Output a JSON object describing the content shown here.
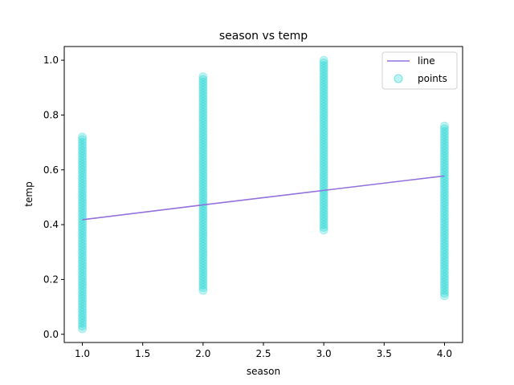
{
  "chart_data": {
    "type": "scatter",
    "title": "season vs temp",
    "xlabel": "season",
    "ylabel": "temp",
    "xlim": [
      0.85,
      4.15
    ],
    "ylim": [
      -0.03,
      1.05
    ],
    "xticks": [
      1.0,
      1.5,
      2.0,
      2.5,
      3.0,
      3.5,
      4.0
    ],
    "xtick_labels": [
      "1.0",
      "1.5",
      "2.0",
      "2.5",
      "3.0",
      "3.5",
      "4.0"
    ],
    "yticks": [
      0.0,
      0.2,
      0.4,
      0.6,
      0.8,
      1.0
    ],
    "ytick_labels": [
      "0.0",
      "0.2",
      "0.4",
      "0.6",
      "0.8",
      "1.0"
    ],
    "legend_position": "top-right",
    "grid": false,
    "series": [
      {
        "name": "line",
        "kind": "line",
        "color": "#9370DB",
        "x": [
          1.0,
          2.0,
          3.0,
          4.0
        ],
        "y": [
          0.418,
          0.472,
          0.525,
          0.578
        ]
      },
      {
        "name": "points",
        "kind": "scatter",
        "color": "#00CED1",
        "alpha": 0.25,
        "groups": [
          {
            "x": 1.0,
            "ymin": 0.02,
            "ymax": 0.72,
            "outliers": []
          },
          {
            "x": 2.0,
            "ymin": 0.16,
            "ymax": 0.94,
            "outliers": []
          },
          {
            "x": 3.0,
            "ymin": 0.38,
            "ymax": 1.0,
            "outliers": []
          },
          {
            "x": 4.0,
            "ymin": 0.14,
            "ymax": 0.76,
            "outliers": []
          }
        ]
      }
    ]
  }
}
